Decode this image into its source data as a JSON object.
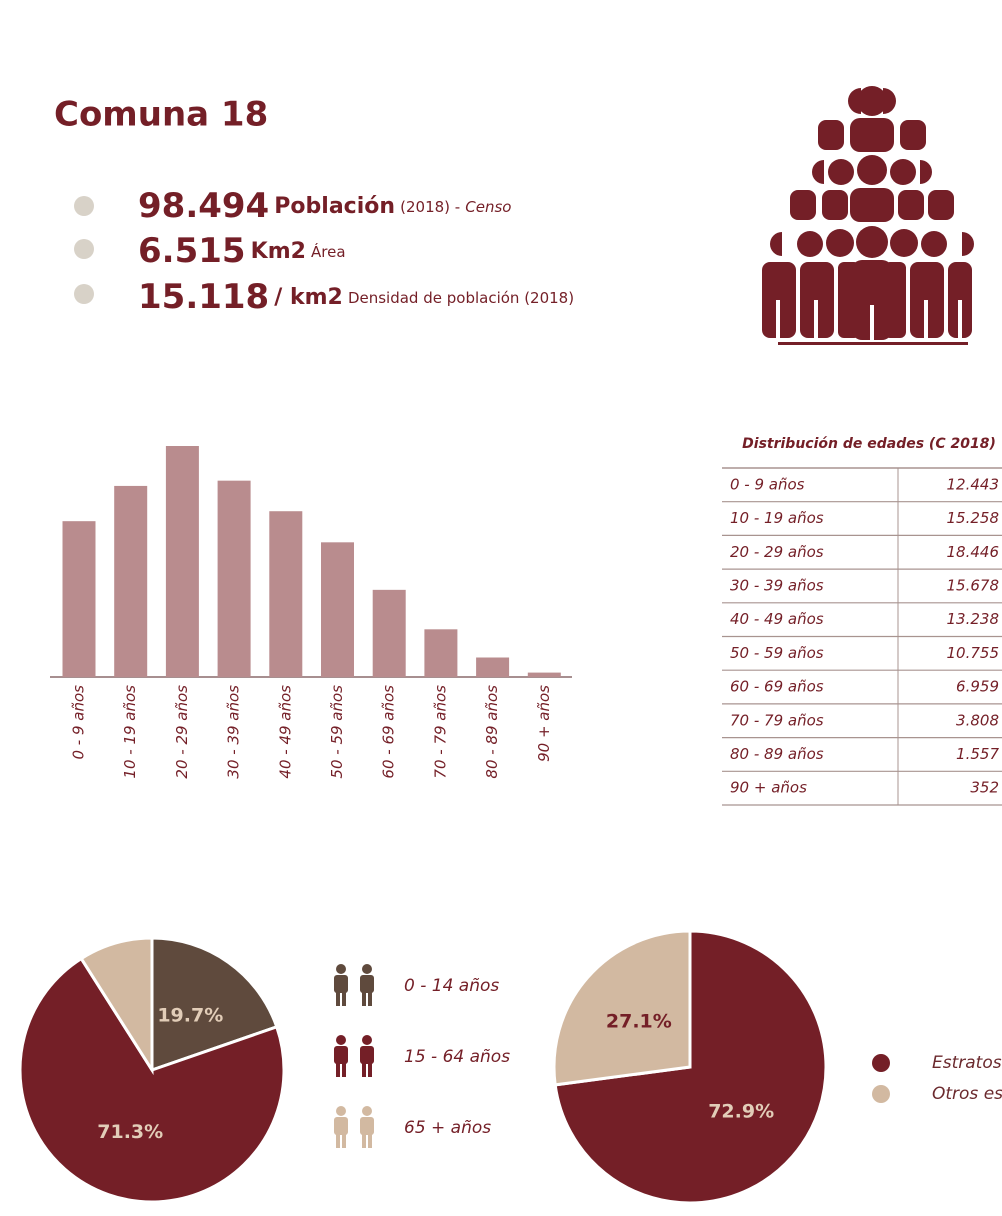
{
  "title": "Comuna 18",
  "stats": [
    {
      "value": "98.494",
      "unit": "Población",
      "note": "(2018) -",
      "source": "Censo"
    },
    {
      "value": "6.515",
      "unit": "Km2",
      "note": "Área"
    },
    {
      "value": "15.118",
      "unit": "/ km2",
      "note": "Densidad de población (2018)"
    }
  ],
  "chart_data": [
    {
      "type": "bar",
      "categories": [
        "0 - 9 años",
        "10 - 19 años",
        "20 - 29 años",
        "30 - 39 años",
        "40 - 49 años",
        "50 - 59 años",
        "60 - 69 años",
        "70 - 79 años",
        "80 - 89 años",
        "90 +  años"
      ],
      "values": [
        12443,
        15258,
        18446,
        15678,
        13238,
        10755,
        6959,
        3808,
        1557,
        352
      ],
      "color": "#b98c8e"
    },
    {
      "type": "pie",
      "categories": [
        "0 - 14 años",
        "15 - 64 años",
        "65 + años"
      ],
      "values": [
        19.7,
        71.3,
        9.0
      ],
      "value_labels": [
        "19.7%",
        "71.3%",
        null
      ],
      "colors": [
        "#5f4a3d",
        "#741f27",
        "#d2b9a1"
      ]
    },
    {
      "type": "pie",
      "categories": [
        "Estratos",
        "Otros es"
      ],
      "values": [
        72.9,
        27.1
      ],
      "value_labels": [
        "72.9%",
        "27.1%"
      ],
      "colors": [
        "#741f27",
        "#d2b9a1"
      ]
    }
  ],
  "table": {
    "title": "Distribución de edades (C 2018)",
    "rows": [
      [
        "0 - 9 años",
        "12.443"
      ],
      [
        "10 - 19 años",
        "15.258"
      ],
      [
        "20 - 29 años",
        "18.446"
      ],
      [
        "30 - 39 años",
        "15.678"
      ],
      [
        "40 - 49 años",
        "13.238"
      ],
      [
        "50 - 59 años",
        "10.755"
      ],
      [
        "60 - 69 años",
        "6.959"
      ],
      [
        "70 - 79 años",
        "3.808"
      ],
      [
        "80 - 89 años",
        "1.557"
      ],
      [
        "90 + años",
        "352"
      ]
    ]
  }
}
